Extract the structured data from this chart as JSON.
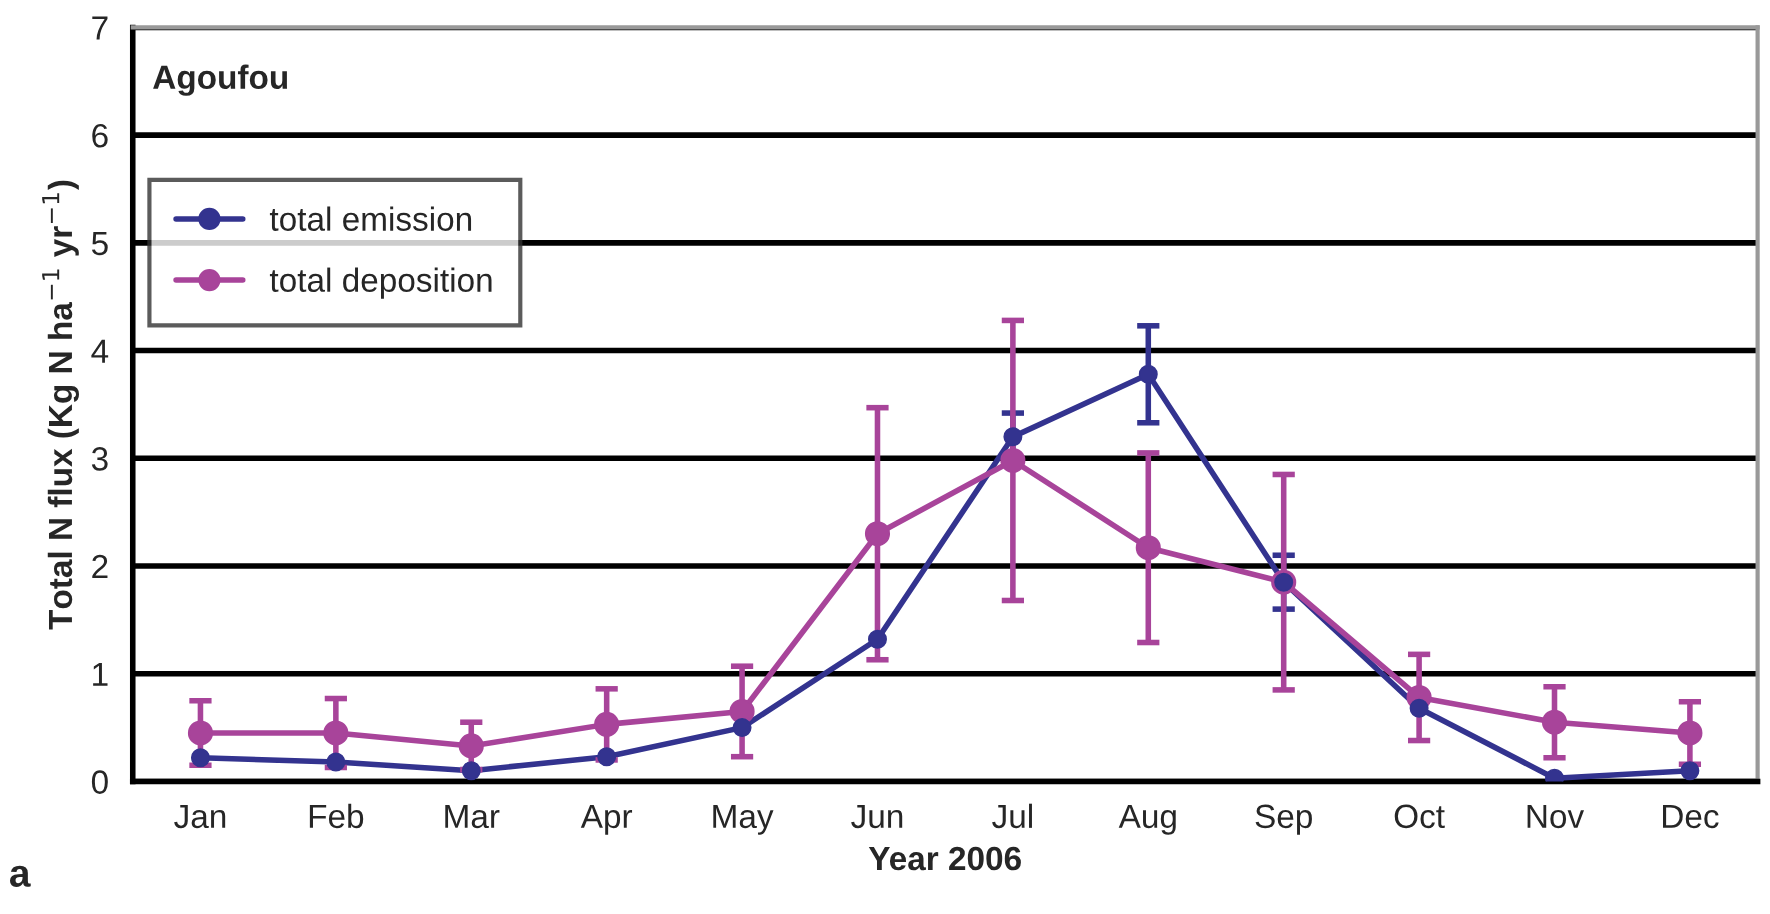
{
  "chart_data": {
    "type": "line",
    "title": "Agoufou",
    "xlabel": "Year 2006",
    "ylabel": "Total N flux (Kg N ha$^{−1}$ yr$^{−1}$)",
    "categories": [
      "Jan",
      "Feb",
      "Mar",
      "Apr",
      "May",
      "Jun",
      "Jul",
      "Aug",
      "Sep",
      "Oct",
      "Nov",
      "Dec"
    ],
    "series": [
      {
        "name": "total emission",
        "color": "#33338f",
        "values": [
          0.22,
          0.18,
          0.1,
          0.23,
          0.5,
          1.32,
          3.2,
          3.78,
          1.85,
          0.68,
          0.03,
          0.1
        ],
        "errors": [
          null,
          null,
          null,
          null,
          null,
          null,
          0.22,
          0.45,
          0.25,
          null,
          null,
          null
        ]
      },
      {
        "name": "total deposition",
        "color": "#a8449a",
        "values": [
          0.45,
          0.45,
          0.33,
          0.53,
          0.65,
          2.3,
          2.98,
          2.17,
          1.85,
          0.78,
          0.55,
          0.45
        ],
        "errors": [
          0.3,
          0.32,
          0.22,
          0.33,
          0.42,
          1.17,
          1.3,
          0.88,
          1.0,
          0.4,
          0.33,
          0.29
        ]
      }
    ],
    "ylim": [
      0,
      7
    ],
    "yticks": [
      0,
      1,
      2,
      3,
      4,
      5,
      6,
      7
    ],
    "grid": "y",
    "legend": "top left",
    "marker": "circle",
    "line_style": "solid",
    "annotations": [
      "a"
    ]
  }
}
